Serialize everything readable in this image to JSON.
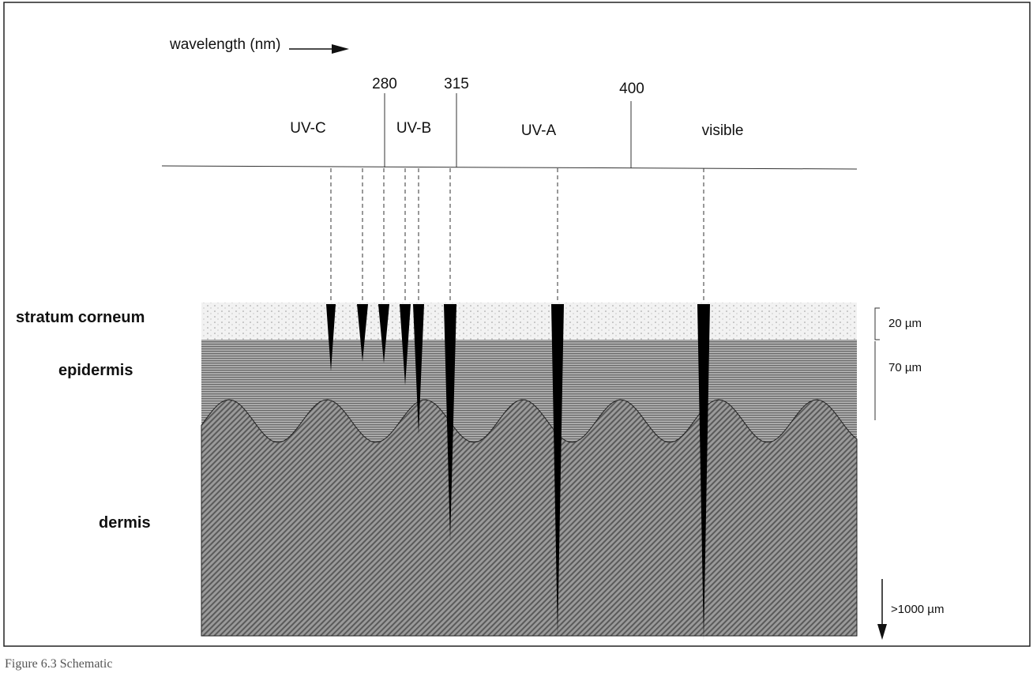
{
  "header": {
    "axis_label": "wavelength (nm)"
  },
  "boundaries": [
    "280",
    "315",
    "400"
  ],
  "bands": [
    "UV-C",
    "UV-B",
    "UV-A",
    "visible"
  ],
  "layers": [
    "stratum corneum",
    "epidermis",
    "dermis"
  ],
  "depths": [
    "20 µm",
    "70 µm",
    ">1000 µm"
  ],
  "caption": "Figure 6.3 Schematic"
}
